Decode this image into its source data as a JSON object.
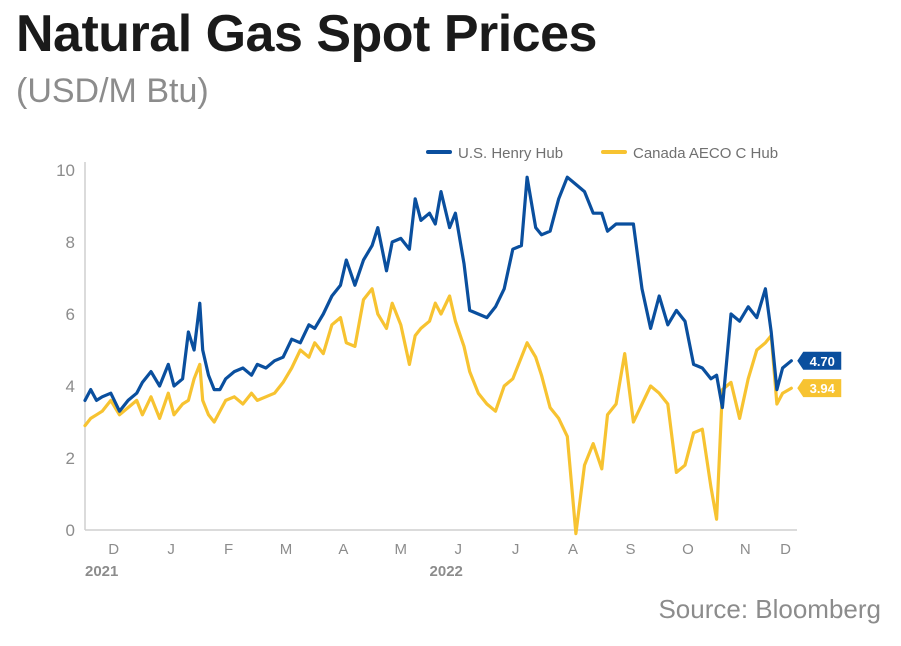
{
  "header": {
    "title": "Natural Gas Spot Prices",
    "subtitle": "(USD/M Btu)"
  },
  "source": "Source: Bloomberg",
  "colors": {
    "henry": "#0a4f9e",
    "aeco": "#f7c331",
    "axis": "#cfcfcf",
    "text": "#8c8c8c"
  },
  "chart_data": {
    "type": "line",
    "title": "Natural Gas Spot Prices",
    "subtitle": "(USD/M Btu)",
    "ylim": [
      0,
      10
    ],
    "yticks": [
      0,
      2,
      4,
      6,
      8,
      10
    ],
    "xlim": [
      0,
      12.4
    ],
    "xticks": [
      {
        "label": "D",
        "pos": 0.5
      },
      {
        "label": "J",
        "pos": 1.5
      },
      {
        "label": "F",
        "pos": 2.5
      },
      {
        "label": "M",
        "pos": 3.5
      },
      {
        "label": "A",
        "pos": 4.5
      },
      {
        "label": "M",
        "pos": 5.5
      },
      {
        "label": "J",
        "pos": 6.5
      },
      {
        "label": "J",
        "pos": 7.5
      },
      {
        "label": "A",
        "pos": 8.5
      },
      {
        "label": "S",
        "pos": 9.5
      },
      {
        "label": "O",
        "pos": 10.5
      },
      {
        "label": "N",
        "pos": 11.5
      },
      {
        "label": "D",
        "pos": 12.2
      }
    ],
    "years": [
      {
        "label": "2021",
        "pos": 0
      },
      {
        "label": "2022",
        "pos": 6.0
      }
    ],
    "legend_position": "top-right",
    "series": [
      {
        "name": "U.S. Henry Hub",
        "color": "#0a4f9e",
        "end_label": "4.70",
        "x": [
          0,
          0.1,
          0.2,
          0.3,
          0.45,
          0.6,
          0.75,
          0.9,
          1.0,
          1.15,
          1.3,
          1.45,
          1.55,
          1.7,
          1.8,
          1.9,
          2.0,
          2.05,
          2.15,
          2.25,
          2.35,
          2.45,
          2.6,
          2.75,
          2.9,
          3.0,
          3.15,
          3.3,
          3.45,
          3.6,
          3.75,
          3.9,
          4.0,
          4.15,
          4.3,
          4.45,
          4.55,
          4.7,
          4.85,
          5.0,
          5.1,
          5.25,
          5.35,
          5.5,
          5.65,
          5.75,
          5.85,
          6.0,
          6.1,
          6.2,
          6.35,
          6.45,
          6.6,
          6.7,
          6.85,
          7.0,
          7.15,
          7.3,
          7.45,
          7.6,
          7.7,
          7.85,
          7.95,
          8.1,
          8.25,
          8.4,
          8.55,
          8.7,
          8.85,
          9.0,
          9.1,
          9.25,
          9.4,
          9.55,
          9.7,
          9.85,
          10.0,
          10.15,
          10.3,
          10.45,
          10.6,
          10.75,
          10.9,
          11.0,
          11.1,
          11.25,
          11.4,
          11.55,
          11.7,
          11.85,
          11.95,
          12.05,
          12.15,
          12.3
        ],
        "values": [
          3.6,
          3.9,
          3.6,
          3.7,
          3.8,
          3.3,
          3.6,
          3.8,
          4.1,
          4.4,
          4.0,
          4.6,
          4.0,
          4.2,
          5.5,
          5.0,
          6.3,
          5.0,
          4.3,
          3.9,
          3.9,
          4.2,
          4.4,
          4.5,
          4.3,
          4.6,
          4.5,
          4.7,
          4.8,
          5.3,
          5.2,
          5.7,
          5.6,
          6.0,
          6.5,
          6.8,
          7.5,
          6.8,
          7.5,
          7.9,
          8.4,
          7.2,
          8.0,
          8.1,
          7.8,
          9.2,
          8.6,
          8.8,
          8.5,
          9.4,
          8.4,
          8.8,
          7.4,
          6.1,
          6.0,
          5.9,
          6.2,
          6.7,
          7.8,
          7.9,
          9.8,
          8.4,
          8.2,
          8.3,
          9.2,
          9.8,
          9.6,
          9.4,
          8.8,
          8.8,
          8.3,
          8.5,
          8.5,
          8.5,
          6.7,
          5.6,
          6.5,
          5.7,
          6.1,
          5.8,
          4.6,
          4.5,
          4.2,
          4.3,
          3.4,
          6.0,
          5.8,
          6.2,
          5.9,
          6.7,
          5.5,
          3.9,
          4.5,
          4.7
        ]
      },
      {
        "name": "Canada AECO C Hub",
        "color": "#f7c331",
        "end_label": "3.94",
        "x": [
          0,
          0.1,
          0.2,
          0.3,
          0.45,
          0.6,
          0.75,
          0.9,
          1.0,
          1.15,
          1.3,
          1.45,
          1.55,
          1.7,
          1.8,
          1.9,
          2.0,
          2.05,
          2.15,
          2.25,
          2.35,
          2.45,
          2.6,
          2.75,
          2.9,
          3.0,
          3.15,
          3.3,
          3.45,
          3.6,
          3.75,
          3.9,
          4.0,
          4.15,
          4.3,
          4.45,
          4.55,
          4.7,
          4.85,
          5.0,
          5.1,
          5.25,
          5.35,
          5.5,
          5.65,
          5.75,
          5.85,
          6.0,
          6.1,
          6.2,
          6.35,
          6.45,
          6.6,
          6.7,
          6.85,
          7.0,
          7.15,
          7.3,
          7.45,
          7.6,
          7.7,
          7.85,
          7.95,
          8.1,
          8.25,
          8.4,
          8.55,
          8.7,
          8.85,
          9.0,
          9.1,
          9.25,
          9.4,
          9.55,
          9.7,
          9.85,
          10.0,
          10.15,
          10.3,
          10.45,
          10.6,
          10.75,
          10.9,
          11.0,
          11.1,
          11.25,
          11.4,
          11.55,
          11.7,
          11.85,
          11.95,
          12.05,
          12.15,
          12.3
        ],
        "values": [
          2.9,
          3.1,
          3.2,
          3.3,
          3.6,
          3.2,
          3.4,
          3.6,
          3.2,
          3.7,
          3.1,
          3.8,
          3.2,
          3.5,
          3.6,
          4.2,
          4.6,
          3.6,
          3.2,
          3.0,
          3.3,
          3.6,
          3.7,
          3.5,
          3.8,
          3.6,
          3.7,
          3.8,
          4.1,
          4.5,
          5.0,
          4.8,
          5.2,
          4.9,
          5.7,
          5.9,
          5.2,
          5.1,
          6.4,
          6.7,
          6.0,
          5.6,
          6.3,
          5.7,
          4.6,
          5.4,
          5.6,
          5.8,
          6.3,
          6.0,
          6.5,
          5.8,
          5.1,
          4.4,
          3.8,
          3.5,
          3.3,
          4.0,
          4.2,
          4.8,
          5.2,
          4.8,
          4.3,
          3.4,
          3.1,
          2.6,
          -0.1,
          1.8,
          2.4,
          1.7,
          3.2,
          3.5,
          4.9,
          3.0,
          3.5,
          4.0,
          3.8,
          3.5,
          1.6,
          1.8,
          2.7,
          2.8,
          1.2,
          0.3,
          3.9,
          4.1,
          3.1,
          4.2,
          5.0,
          5.2,
          5.4,
          3.5,
          3.8,
          3.94
        ]
      }
    ]
  }
}
